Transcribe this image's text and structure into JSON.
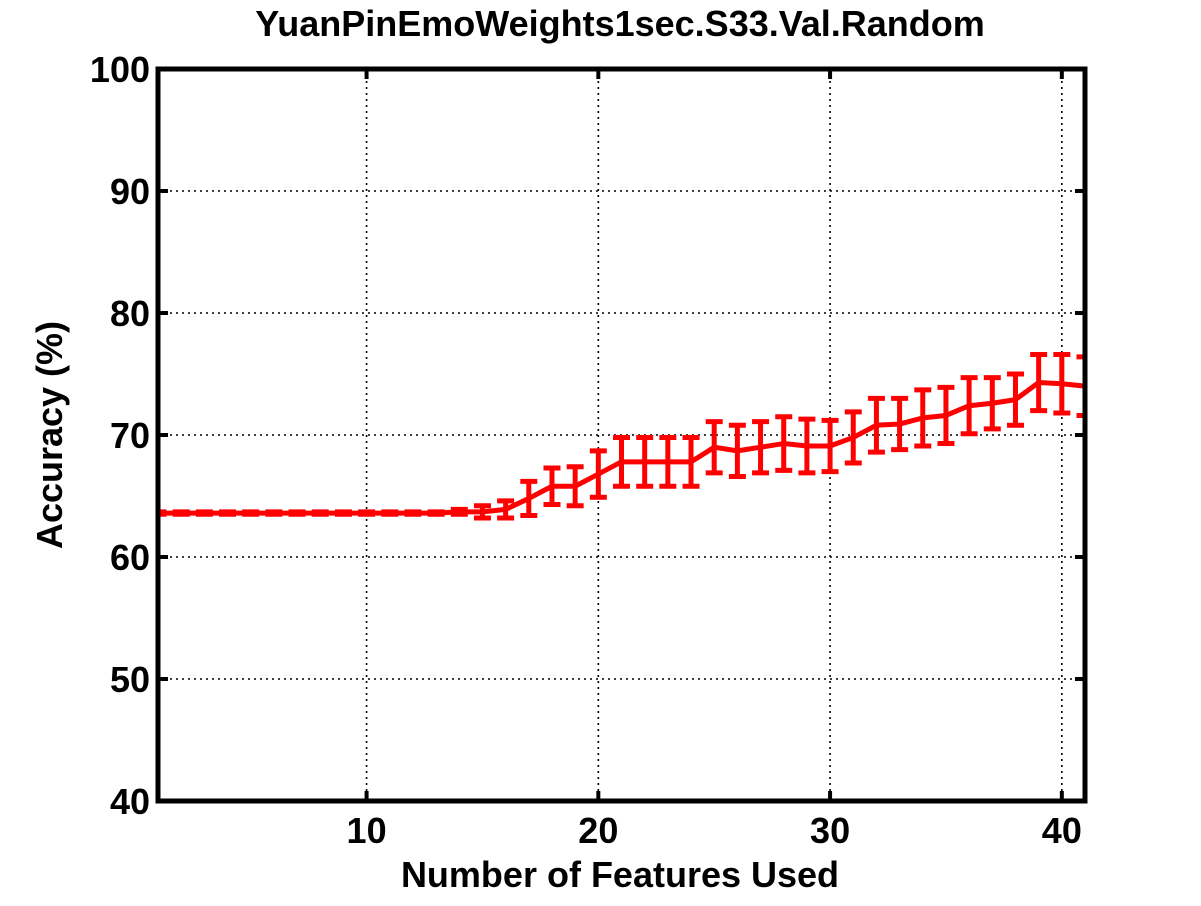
{
  "chart_data": {
    "type": "line",
    "title": "YuanPinEmoWeights1sec.S33.Val.Random",
    "xlabel": "Number of Features Used",
    "ylabel": "Accuracy (%)",
    "xlim": [
      1,
      41
    ],
    "ylim": [
      40,
      100
    ],
    "xticks": [
      10,
      20,
      30,
      40
    ],
    "yticks": [
      40,
      50,
      60,
      70,
      80,
      90,
      100
    ],
    "grid": true,
    "series": [
      {
        "name": "Accuracy",
        "color": "#ff0000",
        "x": [
          1,
          2,
          3,
          4,
          5,
          6,
          7,
          8,
          9,
          10,
          11,
          12,
          13,
          14,
          15,
          16,
          17,
          18,
          19,
          20,
          21,
          22,
          23,
          24,
          25,
          26,
          27,
          28,
          29,
          30,
          31,
          32,
          33,
          34,
          35,
          36,
          37,
          38,
          39,
          40,
          41
        ],
        "values": [
          63.6,
          63.6,
          63.6,
          63.6,
          63.6,
          63.6,
          63.6,
          63.6,
          63.6,
          63.6,
          63.6,
          63.6,
          63.6,
          63.7,
          63.7,
          63.9,
          64.8,
          65.8,
          65.8,
          66.8,
          67.8,
          67.8,
          67.8,
          67.8,
          69.0,
          68.7,
          69.0,
          69.3,
          69.1,
          69.1,
          69.8,
          70.8,
          70.9,
          71.4,
          71.6,
          72.4,
          72.6,
          72.9,
          74.3,
          74.2,
          74.0
        ],
        "errors": [
          0.1,
          0.1,
          0.1,
          0.1,
          0.1,
          0.1,
          0.1,
          0.1,
          0.1,
          0.1,
          0.1,
          0.1,
          0.1,
          0.2,
          0.5,
          0.7,
          1.4,
          1.5,
          1.6,
          1.9,
          2.0,
          2.0,
          2.0,
          2.0,
          2.1,
          2.1,
          2.1,
          2.2,
          2.2,
          2.1,
          2.1,
          2.2,
          2.1,
          2.3,
          2.3,
          2.3,
          2.1,
          2.1,
          2.3,
          2.4,
          2.4
        ]
      }
    ]
  }
}
